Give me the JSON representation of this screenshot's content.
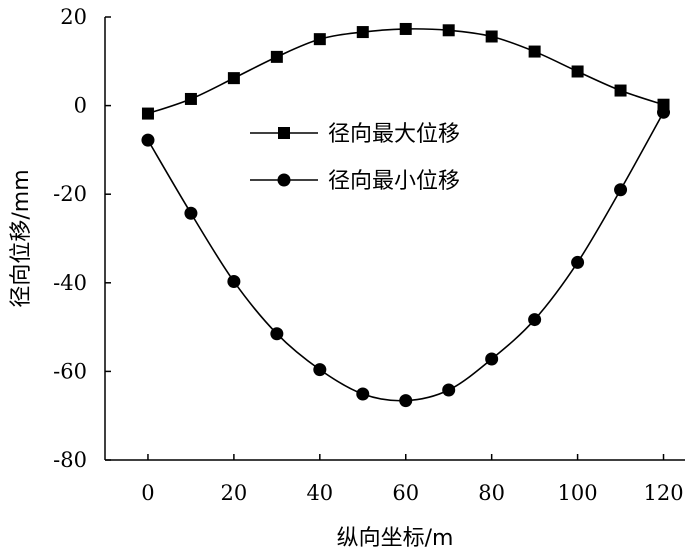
{
  "chart_data": {
    "type": "line",
    "title": "",
    "xlabel": "纵向坐标/m",
    "ylabel": "径向位移/mm",
    "xlim": [
      -10,
      125
    ],
    "ylim": [
      -80,
      20
    ],
    "xticks": [
      0,
      20,
      40,
      60,
      80,
      100,
      120
    ],
    "yticks": [
      20,
      0,
      -20,
      -40,
      -60,
      -80
    ],
    "grid": false,
    "legend_position": "center",
    "x": [
      0,
      10,
      20,
      30,
      40,
      50,
      60,
      70,
      80,
      90,
      100,
      110,
      120
    ],
    "series": [
      {
        "name": "径向最大位移",
        "marker": "square",
        "color": "#000000",
        "values": [
          -1.8,
          1.5,
          6.2,
          11.0,
          15.0,
          16.6,
          17.3,
          17.0,
          15.6,
          12.2,
          7.7,
          3.4,
          0.2
        ]
      },
      {
        "name": "径向最小位移",
        "marker": "circle",
        "color": "#000000",
        "values": [
          -7.8,
          -24.3,
          -39.7,
          -51.5,
          -59.6,
          -65.1,
          -66.6,
          -64.2,
          -57.2,
          -48.3,
          -35.4,
          -19.0,
          -1.5
        ]
      }
    ]
  }
}
